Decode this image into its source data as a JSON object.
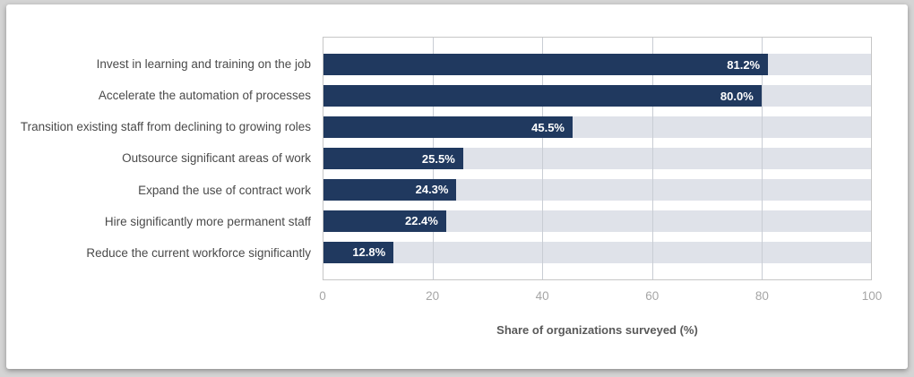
{
  "chart_data": {
    "type": "bar",
    "orientation": "horizontal",
    "categories": [
      "Invest in learning and training on the job",
      "Accelerate the automation of processes",
      "Transition existing staff from declining to growing roles",
      "Outsource significant areas of work",
      "Expand the use of contract work",
      "Hire significantly more permanent staff",
      "Reduce the current workforce significantly"
    ],
    "values": [
      81.2,
      80.0,
      45.5,
      25.5,
      24.3,
      22.4,
      12.8
    ],
    "value_labels": [
      "81.2%",
      "80.0%",
      "45.5%",
      "25.5%",
      "24.3%",
      "22.4%",
      "12.8%"
    ],
    "title": "",
    "xlabel": "Share of organizations surveyed (%)",
    "ylabel": "",
    "xlim": [
      0,
      100
    ],
    "xticks": [
      0,
      20,
      40,
      60,
      80,
      100
    ],
    "grid": true,
    "legend": false,
    "colors": {
      "bar": "#20395f",
      "track": "#dfe2e9",
      "gridline": "#c9cdd4",
      "value_text": "#ffffff",
      "category_text": "#4a4a4a",
      "tick_text": "#a6a6a6",
      "axis_title_text": "#595959"
    }
  }
}
